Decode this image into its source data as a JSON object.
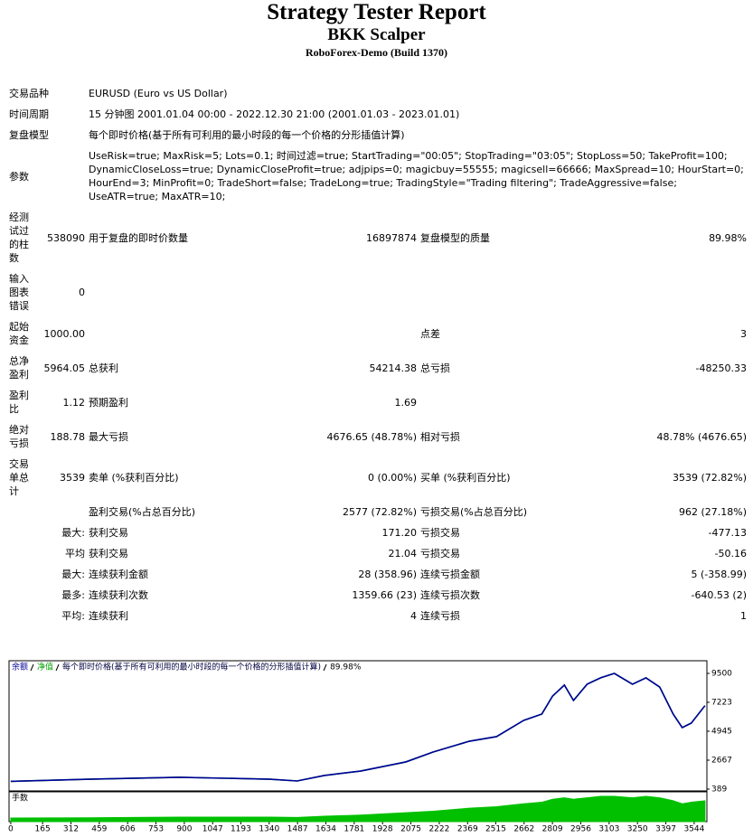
{
  "header": {
    "title": "Strategy Tester Report",
    "subtitle": "BKK Scalper",
    "server": "RoboForex-Demo (Build 1370)"
  },
  "report": {
    "rows": [
      {
        "label": "交易品种",
        "text": "EURUSD (Euro vs US Dollar)"
      },
      {
        "label": "时间周期",
        "text": "15 分钟图 2001.01.04 00:00 - 2022.12.30 21:00 (2001.01.03 - 2023.01.01)"
      },
      {
        "label": "复盘模型",
        "text": "每个即时价格(基于所有可利用的最小时段的每一个价格的分形插值计算)"
      },
      {
        "label": "参数",
        "text": "UseRisk=true; MaxRisk=5; Lots=0.1; 时间过滤=true; StartTrading=\"00:05\"; StopTrading=\"03:05\"; StopLoss=50; TakeProfit=100; DynamicCloseLoss=true; DynamicCloseProfit=true; adjpips=0; magicbuy=55555; magicsell=66666; MaxSpread=10; HourStart=0; HourEnd=3; MinProfit=0; TradeShort=false; TradeLong=true; TradingStyle=\"Trading filtering\"; TradeAggressive=false; UseATR=true; MaxATR=10;"
      },
      {
        "label": "经测试过的柱数",
        "value": "538090",
        "label2": "用于复盘的即时价数量",
        "value2": "16897874",
        "label3": "复盘模型的质量",
        "value3": "89.98%"
      },
      {
        "label": "输入图表错误",
        "value": "0"
      },
      {
        "label": "起始资金",
        "value": "1000.00",
        "label3": "点差",
        "value3": "3"
      },
      {
        "label": "总净盈利",
        "value": "5964.05",
        "label2": "总获利",
        "value2": "54214.38",
        "label3": "总亏损",
        "value3": "-48250.33"
      },
      {
        "label": "盈利比",
        "value": "1.12",
        "label2": "预期盈利",
        "value2": "1.69"
      },
      {
        "label": "绝对亏损",
        "value": "188.78",
        "label2": "最大亏损",
        "value2": "4676.65 (48.78%)",
        "label3": "相对亏损",
        "value3": "48.78% (4676.65)"
      },
      {
        "label": "交易单总计",
        "value": "3539",
        "label2": "卖单 (%获利百分比)",
        "value2": "0 (0.00%)",
        "label3": "买单 (%获利百分比)",
        "value3": "3539 (72.82%)"
      },
      {
        "label2": "盈利交易(%占总百分比)",
        "value2": "2577 (72.82%)",
        "label3": "亏损交易(%占总百分比)",
        "value3": "962 (27.18%)"
      },
      {
        "sublabel": "最大:",
        "label2": "获利交易",
        "value2": "171.20",
        "label3": "亏损交易",
        "value3": "-477.13"
      },
      {
        "sublabel": "平均",
        "label2": "获利交易",
        "value2": "21.04",
        "label3": "亏损交易",
        "value3": "-50.16"
      },
      {
        "sublabel": "最大:",
        "label2": "连续获利金额",
        "value2": "28 (358.96)",
        "label3": "连续亏损金额",
        "value3": "5 (-358.99)"
      },
      {
        "sublabel": "最多:",
        "label2": "连续获利次数",
        "value2": "1359.66 (23)",
        "label3": "连续亏损次数",
        "value3": "-640.53 (2)"
      },
      {
        "sublabel": "平均:",
        "label2": "连续获利",
        "value2": "4",
        "label3": "连续亏损",
        "value3": "1"
      }
    ]
  },
  "chart_data": [
    {
      "type": "line",
      "legend_note": "每个即时价格(基于所有可利用的最小时段的每一个价格的分形插值计算)",
      "quality": "89.98%",
      "x": [
        0,
        404,
        874,
        1344,
        1485,
        1626,
        1814,
        2049,
        2190,
        2378,
        2519,
        2660,
        2754,
        2810,
        2871,
        2918,
        2989,
        3059,
        3130,
        3224,
        3294,
        3365,
        3435,
        3482,
        3529,
        3600
      ],
      "series": [
        {
          "name": "净值",
          "color": "#00a000",
          "values": [
            1000,
            1170,
            1320,
            1170,
            1030,
            1460,
            1810,
            2530,
            3310,
            4160,
            4520,
            5800,
            6300,
            7720,
            8580,
            7370,
            8650,
            9150,
            9500,
            8650,
            9150,
            8430,
            6300,
            5230,
            5590,
            6960
          ]
        },
        {
          "name": "余额",
          "color": "#00009c",
          "values": [
            1000,
            1170,
            1320,
            1170,
            1030,
            1460,
            1810,
            2530,
            3310,
            4160,
            4520,
            5800,
            6300,
            7720,
            8580,
            7370,
            8650,
            9150,
            9500,
            8650,
            9150,
            8430,
            6300,
            5230,
            5590,
            6960
          ]
        }
      ],
      "xlim": [
        -9,
        3610
      ],
      "xticks": [
        0,
        165,
        312,
        459,
        606,
        753,
        900,
        1047,
        1193,
        1340,
        1487,
        1634,
        1781,
        1928,
        2075,
        2222,
        2369,
        2515,
        2662,
        2809,
        2956,
        3103,
        3250,
        3397,
        3544
      ],
      "ylim": [
        247,
        10497
      ],
      "yticks": [
        389,
        2667,
        4945,
        7223,
        9500
      ]
    },
    {
      "type": "area",
      "title": "手数",
      "color": "#00c000",
      "x": [
        0,
        404,
        874,
        1344,
        1485,
        1626,
        1814,
        2049,
        2190,
        2378,
        2519,
        2660,
        2754,
        2810,
        2871,
        2918,
        2989,
        3059,
        3130,
        3224,
        3294,
        3365,
        3435,
        3482,
        3529,
        3600
      ],
      "values": [
        1.2,
        1.3,
        1.5,
        1.5,
        1.4,
        1.8,
        2.2,
        3,
        3.5,
        4.5,
        5,
        6,
        6.5,
        7.5,
        8,
        7.5,
        8,
        8.5,
        8.5,
        8,
        8.5,
        8,
        7,
        6,
        6.5,
        7
      ],
      "xlim": [
        -9,
        3610
      ],
      "ylim": [
        0,
        10
      ]
    }
  ]
}
